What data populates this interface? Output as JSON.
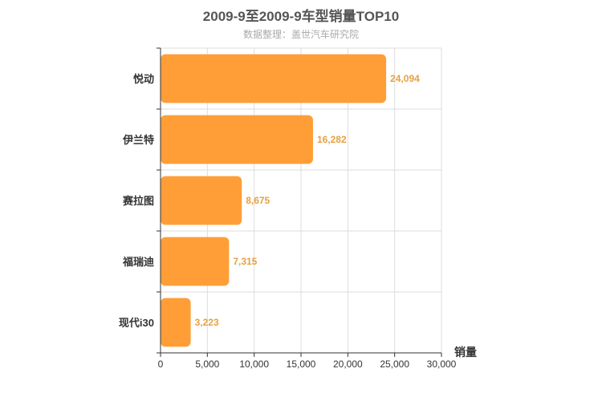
{
  "colors": {
    "bar": "#ff9e36",
    "label": "#e8a040",
    "grid": "#dddddd",
    "axis": "#333333"
  },
  "chart_data": {
    "type": "bar",
    "orientation": "horizontal",
    "title": "2009-9至2009-9车型销量TOP10",
    "subtitle": "数据整理：盖世汽车研究院",
    "categories": [
      "悦动",
      "伊兰特",
      "赛拉图",
      "福瑞迪",
      "现代i30"
    ],
    "values": [
      24094,
      16282,
      8675,
      7315,
      3223
    ],
    "value_labels": [
      "24,094",
      "16,282",
      "8,675",
      "7,315",
      "3,223"
    ],
    "xlabel": "销量",
    "ylabel": "",
    "xlim": [
      0,
      30000
    ],
    "xticks": [
      0,
      5000,
      10000,
      15000,
      20000,
      25000,
      30000
    ],
    "xtick_labels": [
      "0",
      "5,000",
      "10,000",
      "15,000",
      "20,000",
      "25,000",
      "30,000"
    ],
    "grid": true,
    "legend": "none"
  }
}
